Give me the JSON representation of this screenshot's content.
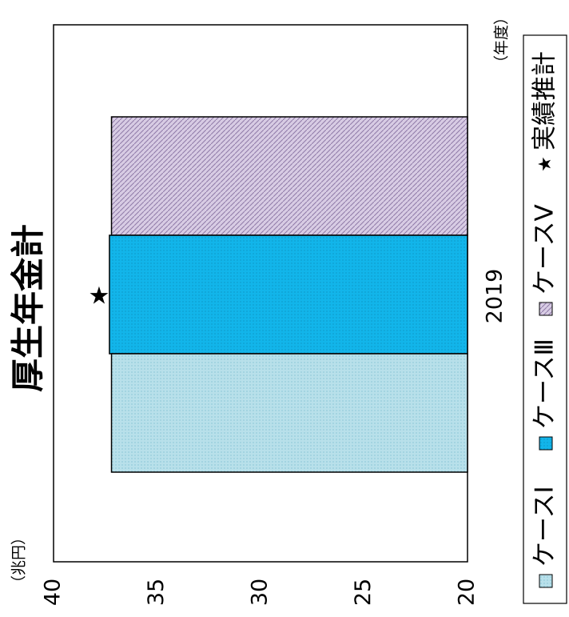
{
  "chart_data": {
    "type": "bar",
    "title": "厚生年金計",
    "y_unit": "（兆円）",
    "x_unit": "（年度）",
    "categories": [
      "2019"
    ],
    "ylim": [
      20,
      40
    ],
    "yticks": [
      40,
      35,
      30,
      25,
      20
    ],
    "series": [
      {
        "name": "ケースⅠ",
        "values": [
          37.2
        ],
        "color": "#b8e0ea",
        "pattern": "dots"
      },
      {
        "name": "ケースⅢ",
        "values": [
          37.3
        ],
        "color": "#12b5ea",
        "pattern": "dots"
      },
      {
        "name": "ケースⅤ",
        "values": [
          37.2
        ],
        "color": "#c9b8d8",
        "pattern": "diagonal"
      }
    ],
    "markers": [
      {
        "name": "実績推計",
        "category": "2019",
        "value": 37.8,
        "symbol": "★"
      }
    ],
    "legend_position": "bottom",
    "grid": false
  }
}
